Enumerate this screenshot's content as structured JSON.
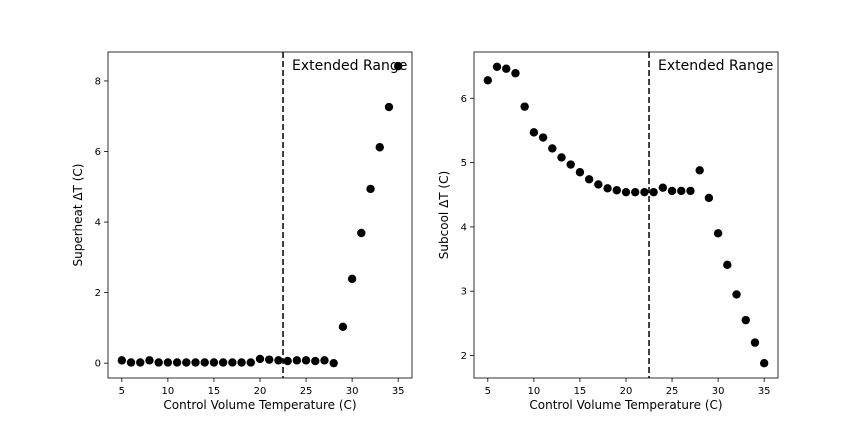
{
  "chart_data": [
    {
      "type": "scatter",
      "title": "",
      "xlabel": "Control Volume Temperature (C)",
      "ylabel": "Superheat ΔT (C)",
      "xlim": [
        3.5,
        36.5
      ],
      "ylim": [
        -0.42,
        8.82
      ],
      "xticks": [
        5,
        10,
        15,
        20,
        25,
        30,
        35
      ],
      "yticks": [
        0,
        2,
        4,
        6,
        8
      ],
      "vline": {
        "x": 22.5,
        "style": "dashed"
      },
      "annotation": "Extended Range",
      "marker_color": "#000000",
      "x": [
        5,
        6,
        7,
        8,
        9,
        10,
        11,
        12,
        13,
        14,
        15,
        16,
        17,
        18,
        19,
        20,
        21,
        22,
        23,
        24,
        25,
        26,
        27,
        28,
        29,
        30,
        31,
        32,
        33,
        34,
        35
      ],
      "y": [
        0.08,
        0.02,
        0.02,
        0.08,
        0.02,
        0.02,
        0.02,
        0.02,
        0.02,
        0.02,
        0.02,
        0.02,
        0.02,
        0.02,
        0.02,
        0.12,
        0.1,
        0.08,
        0.06,
        0.08,
        0.08,
        0.06,
        0.08,
        0.0,
        1.03,
        2.39,
        3.69,
        4.94,
        6.12,
        7.26,
        8.42
      ]
    },
    {
      "type": "scatter",
      "title": "",
      "xlabel": "Control Volume Temperature (C)",
      "ylabel": "Subcool ΔT (C)",
      "xlim": [
        3.5,
        36.5
      ],
      "ylim": [
        1.65,
        6.72
      ],
      "xticks": [
        5,
        10,
        15,
        20,
        25,
        30,
        35
      ],
      "yticks": [
        2,
        3,
        4,
        5,
        6
      ],
      "vline": {
        "x": 22.5,
        "style": "dashed"
      },
      "annotation": "Extended Range",
      "marker_color": "#000000",
      "x": [
        5,
        6,
        7,
        8,
        9,
        10,
        11,
        12,
        13,
        14,
        15,
        16,
        17,
        18,
        19,
        20,
        21,
        22,
        23,
        24,
        25,
        26,
        27,
        28,
        29,
        30,
        31,
        32,
        33,
        34,
        35
      ],
      "y": [
        6.28,
        6.49,
        6.46,
        6.39,
        5.87,
        5.47,
        5.39,
        5.22,
        5.08,
        4.97,
        4.85,
        4.74,
        4.66,
        4.6,
        4.57,
        4.54,
        4.54,
        4.54,
        4.54,
        4.61,
        4.56,
        4.56,
        4.56,
        4.88,
        4.45,
        3.9,
        3.41,
        2.95,
        2.55,
        2.2,
        1.88
      ]
    }
  ]
}
